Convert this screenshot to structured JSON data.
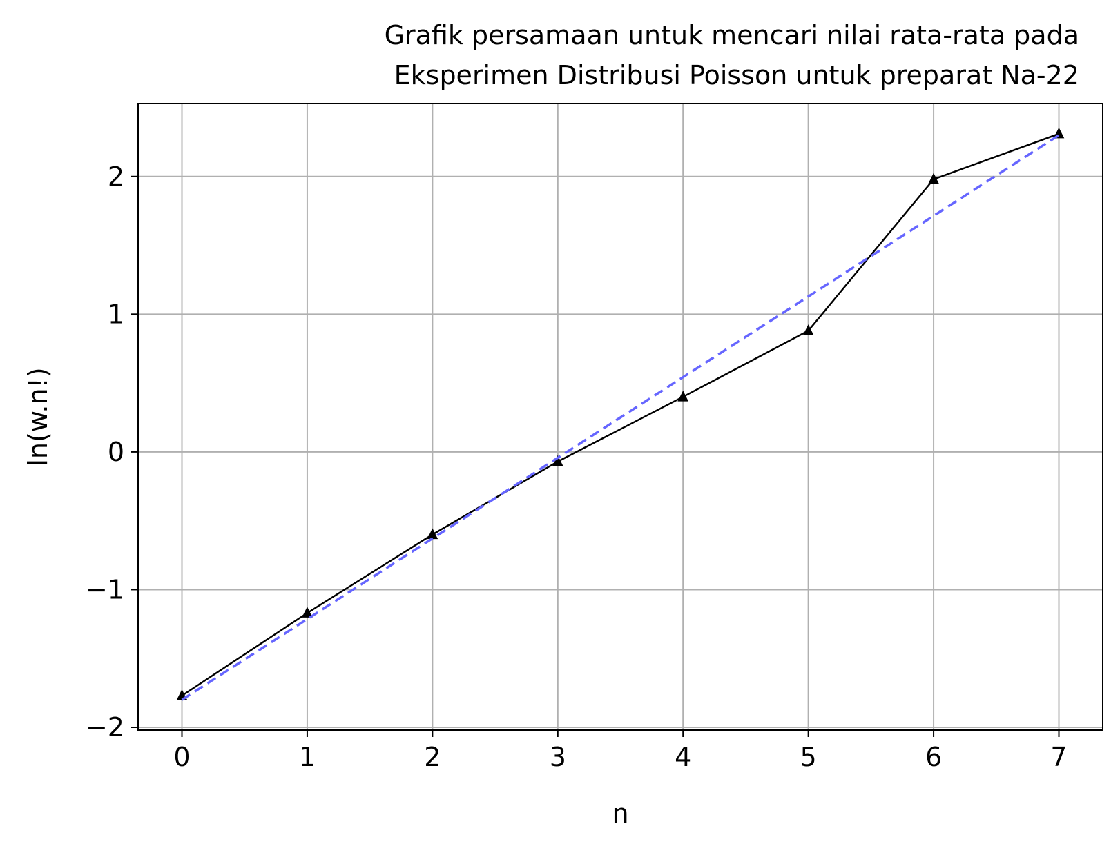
{
  "chart_data": {
    "type": "line",
    "title_lines": [
      "Grafik persamaan untuk mencari nilai rata-rata pada",
      "Eksperimen Distribusi Poisson untuk preparat Na-22"
    ],
    "xlabel": "n",
    "ylabel": "ln(w.n!)",
    "xlim": [
      -0.35,
      7.35
    ],
    "ylim": [
      -2.02,
      2.53
    ],
    "xticks": [
      0,
      1,
      2,
      3,
      4,
      5,
      6,
      7
    ],
    "xtick_labels": [
      "0",
      "1",
      "2",
      "3",
      "4",
      "5",
      "6",
      "7"
    ],
    "yticks": [
      -2,
      -1,
      0,
      1,
      2
    ],
    "ytick_labels": [
      "−2",
      "−1",
      "0",
      "1",
      "2"
    ],
    "grid": true,
    "series": [
      {
        "style": "solid",
        "color": "#000000",
        "marker": "triangle",
        "x": [
          0,
          1,
          2,
          3,
          4,
          5,
          6,
          7
        ],
        "y": [
          -1.77,
          -1.17,
          -0.6,
          -0.07,
          0.4,
          0.88,
          1.98,
          2.31
        ]
      },
      {
        "style": "dashed",
        "color": "#6666ff",
        "marker": "none",
        "x": [
          0,
          7
        ],
        "y": [
          -1.8,
          2.3
        ]
      }
    ]
  }
}
